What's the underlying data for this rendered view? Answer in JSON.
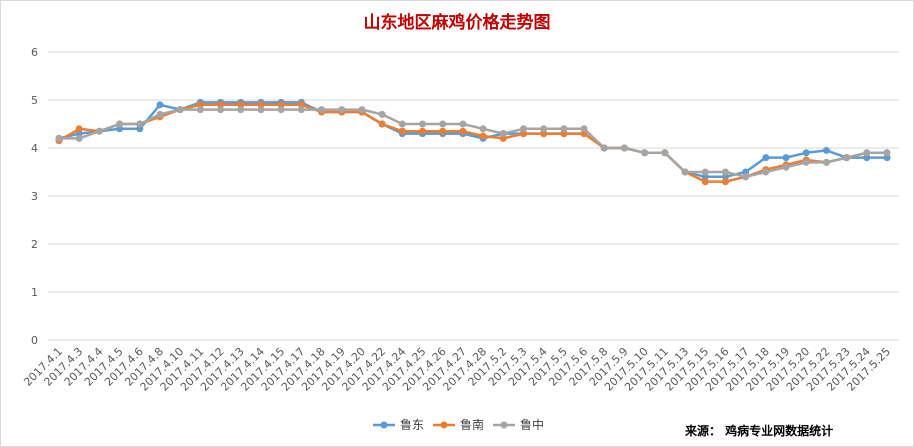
{
  "chart_data": {
    "type": "line",
    "title": "山东地区麻鸡价格走势图",
    "source": "来源：  鸡病专业网数据统计",
    "categories": [
      "2017.4.1",
      "2017.4.3",
      "2017.4.4",
      "2017.4.5",
      "2017.4.6",
      "2017.4.8",
      "2017.4.10",
      "2017.4.11",
      "2017.4.12",
      "2017.4.13",
      "2017.4.14",
      "2017.4.15",
      "2017.4.17",
      "2017.4.18",
      "2017.4.19",
      "2017.4.20",
      "2017.4.22",
      "2017.4.24",
      "2017.4.25",
      "2017.4.26",
      "2017.4.27",
      "2017.4.28",
      "2017.5.2",
      "2017.5.3",
      "2017.5.4",
      "2017.5.5",
      "2017.5.6",
      "2017.5.8",
      "2017.5.9",
      "2017.5.10",
      "2017.5.11",
      "2017.5.13",
      "2017.5.15",
      "2017.5.16",
      "2017.5.17",
      "2017.5.18",
      "2017.5.19",
      "2017.5.20",
      "2017.5.22",
      "2017.5.23",
      "2017.5.24",
      "2017.5.25"
    ],
    "ylim": [
      0,
      6
    ],
    "yticks": [
      0,
      1,
      2,
      3,
      4,
      5,
      6
    ],
    "grid": true,
    "legend_position": "bottom",
    "series": [
      {
        "name": "鲁东",
        "color": "#5B9BD5",
        "values": [
          4.2,
          4.3,
          4.35,
          4.4,
          4.4,
          4.9,
          4.8,
          4.95,
          4.95,
          4.95,
          4.95,
          4.95,
          4.95,
          4.75,
          4.75,
          4.75,
          4.5,
          4.3,
          4.3,
          4.3,
          4.3,
          4.2,
          4.3,
          4.3,
          4.3,
          4.3,
          4.3,
          4.0,
          4.0,
          3.9,
          3.9,
          3.5,
          3.4,
          3.4,
          3.5,
          3.8,
          3.8,
          3.9,
          3.95,
          3.8,
          3.8,
          3.8
        ]
      },
      {
        "name": "鲁南",
        "color": "#ED7D31",
        "values": [
          4.15,
          4.4,
          4.35,
          4.5,
          4.5,
          4.65,
          4.8,
          4.9,
          4.9,
          4.9,
          4.9,
          4.9,
          4.9,
          4.75,
          4.75,
          4.75,
          4.5,
          4.35,
          4.35,
          4.35,
          4.35,
          4.25,
          4.2,
          4.3,
          4.3,
          4.3,
          4.3,
          4.0,
          4.0,
          3.9,
          3.9,
          3.5,
          3.3,
          3.3,
          3.4,
          3.55,
          3.65,
          3.75,
          3.7,
          3.8,
          3.9,
          3.9
        ]
      },
      {
        "name": "鲁中",
        "color": "#A5A5A5",
        "values": [
          4.2,
          4.2,
          4.35,
          4.5,
          4.5,
          4.7,
          4.8,
          4.8,
          4.8,
          4.8,
          4.8,
          4.8,
          4.8,
          4.8,
          4.8,
          4.8,
          4.7,
          4.5,
          4.5,
          4.5,
          4.5,
          4.4,
          4.3,
          4.4,
          4.4,
          4.4,
          4.4,
          4.0,
          4.0,
          3.9,
          3.9,
          3.5,
          3.5,
          3.5,
          3.4,
          3.5,
          3.6,
          3.7,
          3.7,
          3.8,
          3.9,
          3.9
        ]
      }
    ],
    "colors": {
      "title": "#C00000",
      "gridline": "#D9D9D9",
      "axis_text": "#595959"
    }
  }
}
